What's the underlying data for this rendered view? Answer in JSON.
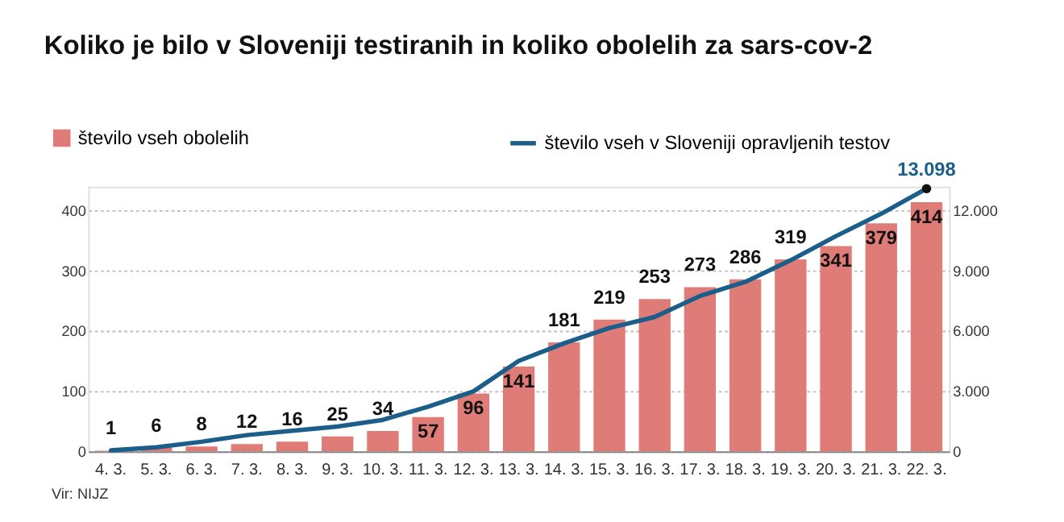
{
  "chart_data": {
    "type": "bar",
    "title": "Koliko je bilo v Sloveniji testiranih in koliko obolelih za sars-cov-2",
    "categories": [
      "4. 3.",
      "5. 3.",
      "6. 3.",
      "7. 3.",
      "8. 3.",
      "9. 3.",
      "10. 3.",
      "11. 3.",
      "12. 3.",
      "13. 3.",
      "14. 3.",
      "15. 3.",
      "16. 3.",
      "17. 3.",
      "18. 3.",
      "19. 3.",
      "20. 3.",
      "21. 3.",
      "22. 3."
    ],
    "series": [
      {
        "name": "število vseh obolelih",
        "color": "#e07c78",
        "values": [
          1,
          6,
          8,
          12,
          16,
          25,
          34,
          57,
          96,
          141,
          181,
          219,
          253,
          273,
          286,
          319,
          341,
          379,
          414
        ],
        "value_labels": [
          "1",
          "6",
          "8",
          "12",
          "16",
          "25",
          "34",
          "57",
          "96",
          "141",
          "181",
          "219",
          "253",
          "273",
          "286",
          "319",
          "341",
          "379",
          "414"
        ]
      },
      {
        "name": "število vseh v Sloveniji opravljenih testov",
        "type": "line",
        "axis": "y2",
        "color": "#1b5e8a",
        "marker": "none",
        "line_style": "solid",
        "values": [
          50,
          200,
          480,
          810,
          1030,
          1240,
          1570,
          2230,
          2990,
          4510,
          5390,
          6150,
          6700,
          7750,
          8450,
          9530,
          10730,
          11850,
          13098
        ],
        "value_labels": [
          null,
          null,
          null,
          null,
          null,
          null,
          null,
          null,
          null,
          null,
          null,
          null,
          null,
          null,
          null,
          null,
          null,
          null,
          "13.098"
        ]
      }
    ],
    "ylim": [
      0,
      440
    ],
    "yticks": [
      0,
      100,
      200,
      300,
      400
    ],
    "y2lim": [
      0,
      13200
    ],
    "y2ticks": [
      0,
      {
        "value": 3000,
        "label": "3.000"
      },
      {
        "value": 6000,
        "label": "6.000"
      },
      {
        "value": 9000,
        "label": "9.000"
      },
      {
        "value": 12000,
        "label": "12.000"
      }
    ],
    "grid": "y",
    "legend": "top",
    "annotations": [
      "Vir: NIJZ"
    ]
  }
}
